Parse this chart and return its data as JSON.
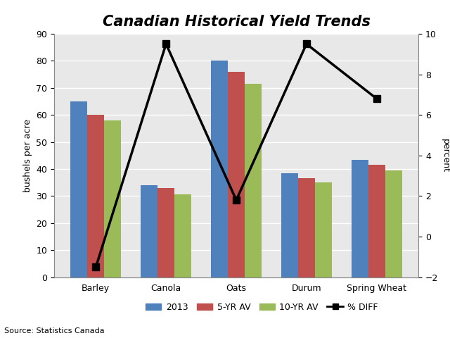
{
  "categories": [
    "Barley",
    "Canola",
    "Oats",
    "Durum",
    "Spring Wheat"
  ],
  "bar_2013": [
    65,
    34,
    80,
    38.5,
    43.5
  ],
  "bar_5yr": [
    60,
    33,
    76,
    36.5,
    41.5
  ],
  "bar_10yr": [
    58,
    30.5,
    71.5,
    35,
    39.5
  ],
  "pct_diff": [
    -1.5,
    9.5,
    1.8,
    9.5,
    6.8
  ],
  "color_2013": "#4f81bd",
  "color_5yr": "#c0504d",
  "color_10yr": "#9bbb59",
  "color_pct": "#000000",
  "title": "Canadian Historical Yield Trends",
  "ylabel_left": "bushels per acre",
  "ylabel_right": "percent",
  "ylim_left": [
    0,
    90
  ],
  "ylim_right": [
    -2,
    10
  ],
  "yticks_left": [
    0,
    10,
    20,
    30,
    40,
    50,
    60,
    70,
    80,
    90
  ],
  "yticks_right": [
    -2,
    0,
    2,
    4,
    6,
    8,
    10
  ],
  "source_text": "Source: Statistics Canada",
  "legend_labels": [
    "2013",
    "5-YR AV",
    "10-YR AV",
    "% DIFF"
  ],
  "background_color": "#ffffff",
  "plot_bg_color": "#e8e8e8",
  "grid_color": "#ffffff"
}
